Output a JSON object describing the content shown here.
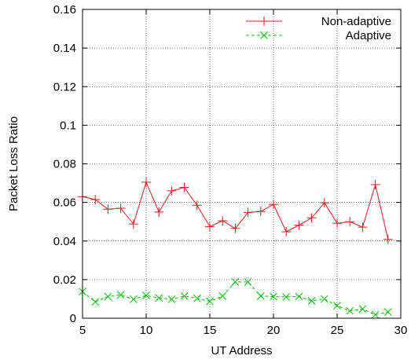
{
  "chart_data": {
    "type": "line",
    "title": "",
    "xlabel": "UT Address",
    "ylabel": "Packet Loss Ratio",
    "xlim": [
      5,
      30
    ],
    "ylim": [
      0,
      0.16
    ],
    "xticks": [
      5,
      10,
      15,
      20,
      25,
      30
    ],
    "yticks": [
      0,
      0.02,
      0.04,
      0.06,
      0.08,
      0.1,
      0.12,
      0.14,
      0.16
    ],
    "xtick_labels": [
      "5",
      "10",
      "15",
      "20",
      "25",
      "30"
    ],
    "ytick_labels": [
      "0",
      "0.02",
      "0.04",
      "0.06",
      "0.08",
      "0.1",
      "0.12",
      "0.14",
      "0.16"
    ],
    "grid": true,
    "legend_position": "top-right",
    "x": [
      5,
      6,
      7,
      8,
      9,
      10,
      11,
      12,
      13,
      14,
      15,
      16,
      17,
      18,
      19,
      20,
      21,
      22,
      23,
      24,
      25,
      26,
      27,
      28,
      29
    ],
    "series": [
      {
        "name": "Non-adaptive",
        "color": "#e41a1c",
        "line_style": "solid",
        "marker": "plus",
        "values": [
          0.063,
          0.0615,
          0.0565,
          0.057,
          0.0488,
          0.0705,
          0.055,
          0.066,
          0.0678,
          0.0585,
          0.0475,
          0.0505,
          0.0465,
          0.0548,
          0.0553,
          0.059,
          0.0448,
          0.0482,
          0.052,
          0.0598,
          0.0492,
          0.05,
          0.0472,
          0.0692,
          0.0408
        ]
      },
      {
        "name": "Adaptive",
        "color": "#00c000",
        "line_style": "dashed",
        "marker": "cross",
        "values": [
          0.0138,
          0.0085,
          0.0112,
          0.0121,
          0.0098,
          0.0118,
          0.0105,
          0.0098,
          0.0115,
          0.0103,
          0.0087,
          0.0115,
          0.0188,
          0.0188,
          0.0115,
          0.0112,
          0.011,
          0.0113,
          0.009,
          0.01,
          0.0065,
          0.0038,
          0.0048,
          0.0018,
          0.0032
        ]
      }
    ]
  }
}
